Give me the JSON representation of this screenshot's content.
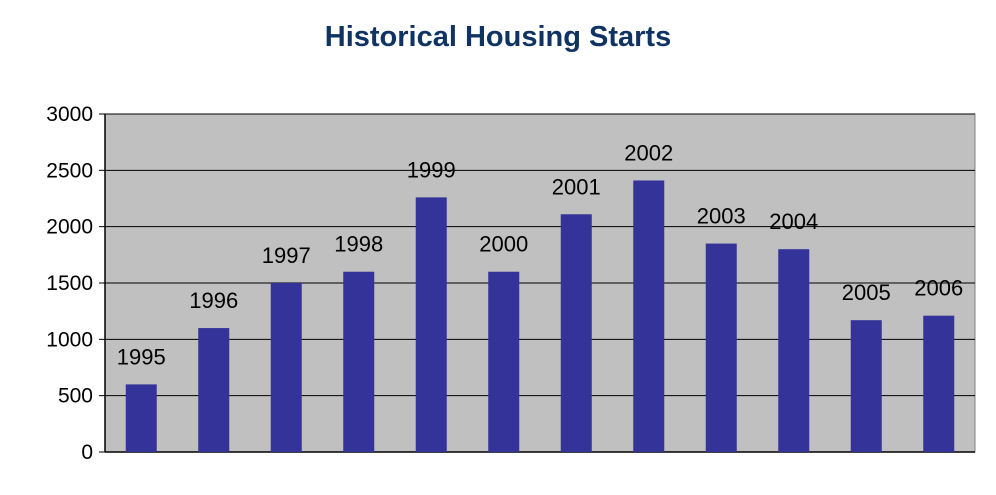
{
  "chart_data": {
    "type": "bar",
    "title": "Historical Housing Starts",
    "xlabel": "",
    "ylabel": "",
    "categories": [
      "1995",
      "1996",
      "1997",
      "1998",
      "1999",
      "2000",
      "2001",
      "2002",
      "2003",
      "2004",
      "2005",
      "2006"
    ],
    "values": [
      600,
      1100,
      1500,
      1600,
      2260,
      1600,
      2110,
      2410,
      1850,
      1800,
      1170,
      1210
    ],
    "ylim": [
      0,
      3000
    ],
    "yticks": [
      "0",
      "500",
      "1000",
      "1500",
      "2000",
      "2500",
      "3000"
    ],
    "grid": true,
    "legend": "none",
    "colors": {
      "bar": "#333399",
      "plot_background": "#c0c0c0",
      "gridline": "#000000",
      "title": "#0f3362"
    }
  }
}
